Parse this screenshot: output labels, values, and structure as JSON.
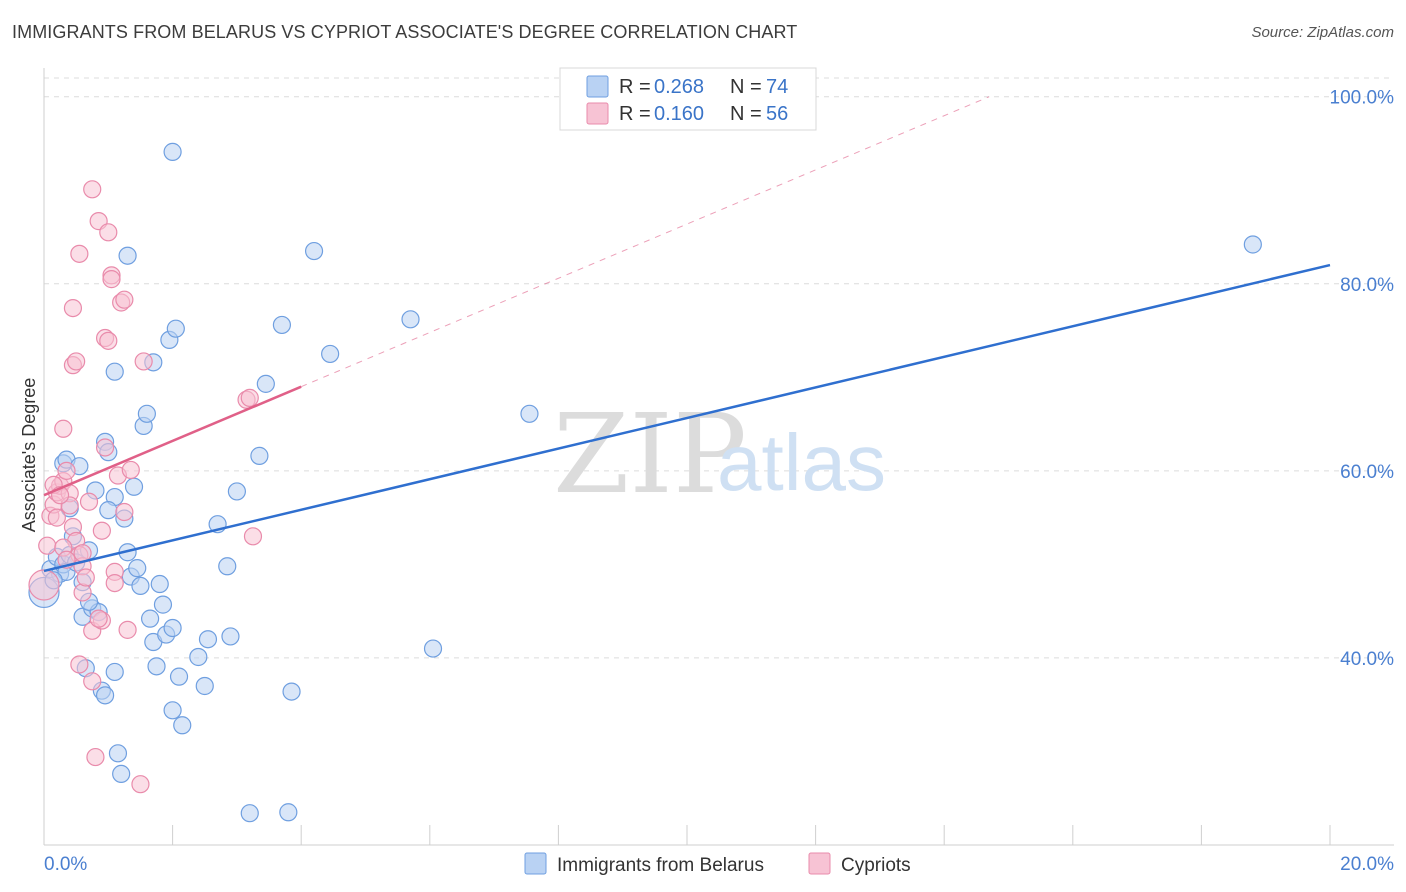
{
  "title": "IMMIGRANTS FROM BELARUS VS CYPRIOT ASSOCIATE'S DEGREE CORRELATION CHART",
  "source": "Source: ZipAtlas.com",
  "colors": {
    "blue_fill": "#b9d2f3",
    "blue_stroke": "#6f9fe0",
    "blue_line": "#2f6fcf",
    "pink_fill": "#f7c3d4",
    "pink_stroke": "#e98bab",
    "pink_line": "#e06088",
    "grid": "#dcdcdc",
    "tick_text": "#4a7fd0"
  },
  "legend": {
    "series": [
      {
        "r_label": "R =",
        "r_value": "0.268",
        "n_label": "N =",
        "n_value": "74"
      },
      {
        "r_label": "R =",
        "r_value": "0.160",
        "n_label": "N =",
        "n_value": "56"
      }
    ]
  },
  "watermark": {
    "zip": "ZIP",
    "atlas": "atlas"
  },
  "chart_data": {
    "type": "scatter",
    "title": "IMMIGRANTS FROM BELARUS VS CYPRIOT ASSOCIATE'S DEGREE CORRELATION CHART",
    "xlabel": "",
    "ylabel": "Associate's Degree",
    "xlim": [
      0,
      20
    ],
    "ylim": [
      20,
      102
    ],
    "x_tick_labels": [
      "0.0%",
      "20.0%"
    ],
    "y_ticks": [
      40,
      60,
      80,
      100
    ],
    "y_tick_labels": [
      "40.0%",
      "60.0%",
      "80.0%",
      "100.0%"
    ],
    "grid": true,
    "legend_position": "top-center",
    "series": [
      {
        "name": "Immigrants from Belarus",
        "color": "blue",
        "trend": {
          "x0": 0.0,
          "y0": 49.3,
          "x1": 20.0,
          "y1": 82.0
        },
        "points": [
          [
            0.0,
            47.0
          ],
          [
            0.1,
            49.5
          ],
          [
            0.2,
            50.8
          ],
          [
            0.25,
            49.0
          ],
          [
            0.3,
            50.0
          ],
          [
            0.35,
            49.2
          ],
          [
            0.4,
            51.0
          ],
          [
            0.3,
            60.8
          ],
          [
            0.35,
            61.2
          ],
          [
            0.4,
            56.0
          ],
          [
            0.5,
            50.2
          ],
          [
            0.6,
            48.1
          ],
          [
            0.7,
            51.5
          ],
          [
            0.6,
            44.4
          ],
          [
            0.65,
            38.9
          ],
          [
            0.75,
            45.3
          ],
          [
            0.85,
            44.9
          ],
          [
            0.9,
            36.5
          ],
          [
            0.95,
            36.0
          ],
          [
            1.1,
            38.5
          ],
          [
            1.15,
            29.8
          ],
          [
            1.2,
            27.6
          ],
          [
            1.1,
            57.2
          ],
          [
            0.95,
            63.1
          ],
          [
            1.0,
            62.0
          ],
          [
            1.1,
            70.6
          ],
          [
            1.3,
            83.0
          ],
          [
            1.3,
            51.3
          ],
          [
            1.35,
            48.7
          ],
          [
            1.4,
            58.3
          ],
          [
            1.5,
            47.7
          ],
          [
            1.55,
            64.8
          ],
          [
            1.6,
            66.1
          ],
          [
            1.7,
            71.6
          ],
          [
            1.65,
            44.2
          ],
          [
            1.7,
            41.7
          ],
          [
            1.75,
            39.1
          ],
          [
            1.8,
            47.9
          ],
          [
            1.85,
            45.7
          ],
          [
            1.9,
            42.5
          ],
          [
            2.0,
            34.4
          ],
          [
            2.0,
            43.2
          ],
          [
            1.95,
            74.0
          ],
          [
            2.05,
            75.2
          ],
          [
            2.1,
            38.0
          ],
          [
            2.15,
            32.8
          ],
          [
            2.4,
            40.1
          ],
          [
            2.5,
            37.0
          ],
          [
            2.55,
            42.0
          ],
          [
            2.7,
            54.3
          ],
          [
            2.85,
            49.8
          ],
          [
            2.9,
            42.3
          ],
          [
            3.0,
            57.8
          ],
          [
            3.35,
            61.6
          ],
          [
            3.45,
            69.3
          ],
          [
            3.7,
            75.6
          ],
          [
            3.85,
            36.4
          ],
          [
            4.2,
            83.5
          ],
          [
            4.45,
            72.5
          ],
          [
            5.7,
            76.2
          ],
          [
            6.05,
            41.0
          ],
          [
            7.55,
            66.1
          ],
          [
            18.8,
            84.2
          ],
          [
            2.0,
            94.1
          ],
          [
            3.2,
            23.4
          ],
          [
            3.8,
            23.5
          ],
          [
            1.0,
            55.8
          ],
          [
            0.55,
            60.5
          ],
          [
            0.45,
            53.0
          ],
          [
            0.8,
            57.9
          ],
          [
            1.25,
            54.9
          ],
          [
            0.15,
            48.3
          ],
          [
            0.7,
            46.0
          ],
          [
            1.45,
            49.6
          ]
        ]
      },
      {
        "name": "Cypriots",
        "color": "pink",
        "trend": {
          "x0": 0.0,
          "y0": 57.4,
          "x1": 4.0,
          "y1": 69.0
        },
        "trend_dashed": {
          "x0": 4.0,
          "y0": 69.0,
          "x1": 14.7,
          "y1": 100.0
        },
        "points": [
          [
            0.0,
            47.8
          ],
          [
            0.05,
            52.0
          ],
          [
            0.1,
            55.2
          ],
          [
            0.15,
            56.4
          ],
          [
            0.2,
            57.7
          ],
          [
            0.25,
            58.4
          ],
          [
            0.3,
            58.9
          ],
          [
            0.35,
            60.0
          ],
          [
            0.3,
            64.5
          ],
          [
            0.4,
            57.6
          ],
          [
            0.45,
            54.0
          ],
          [
            0.5,
            52.5
          ],
          [
            0.55,
            51.0
          ],
          [
            0.6,
            49.8
          ],
          [
            0.45,
            71.3
          ],
          [
            0.5,
            71.7
          ],
          [
            0.55,
            83.2
          ],
          [
            0.45,
            77.4
          ],
          [
            0.55,
            39.3
          ],
          [
            0.6,
            47.0
          ],
          [
            0.65,
            48.6
          ],
          [
            0.7,
            56.7
          ],
          [
            0.75,
            90.1
          ],
          [
            0.75,
            37.5
          ],
          [
            0.75,
            42.9
          ],
          [
            0.8,
            29.4
          ],
          [
            0.85,
            86.7
          ],
          [
            0.9,
            53.6
          ],
          [
            0.9,
            44.0
          ],
          [
            0.95,
            62.5
          ],
          [
            0.95,
            74.2
          ],
          [
            1.0,
            73.9
          ],
          [
            1.0,
            85.5
          ],
          [
            1.05,
            80.9
          ],
          [
            1.05,
            80.5
          ],
          [
            1.1,
            49.2
          ],
          [
            1.15,
            59.5
          ],
          [
            1.2,
            78.0
          ],
          [
            1.25,
            78.3
          ],
          [
            1.25,
            55.6
          ],
          [
            1.3,
            43.0
          ],
          [
            1.35,
            60.1
          ],
          [
            1.5,
            26.5
          ],
          [
            1.55,
            71.7
          ],
          [
            3.15,
            67.6
          ],
          [
            3.2,
            67.8
          ],
          [
            3.25,
            53.0
          ],
          [
            0.2,
            55.0
          ],
          [
            0.3,
            51.8
          ],
          [
            0.4,
            56.3
          ],
          [
            0.15,
            58.5
          ],
          [
            0.25,
            57.4
          ],
          [
            0.35,
            50.5
          ],
          [
            0.6,
            51.2
          ],
          [
            0.85,
            44.2
          ],
          [
            1.1,
            48.0
          ]
        ]
      }
    ]
  },
  "bottom_legend": [
    "Immigrants from Belarus",
    "Cypriots"
  ],
  "axis_ticks": {
    "x_left": "0.0%",
    "x_right": "20.0%"
  }
}
